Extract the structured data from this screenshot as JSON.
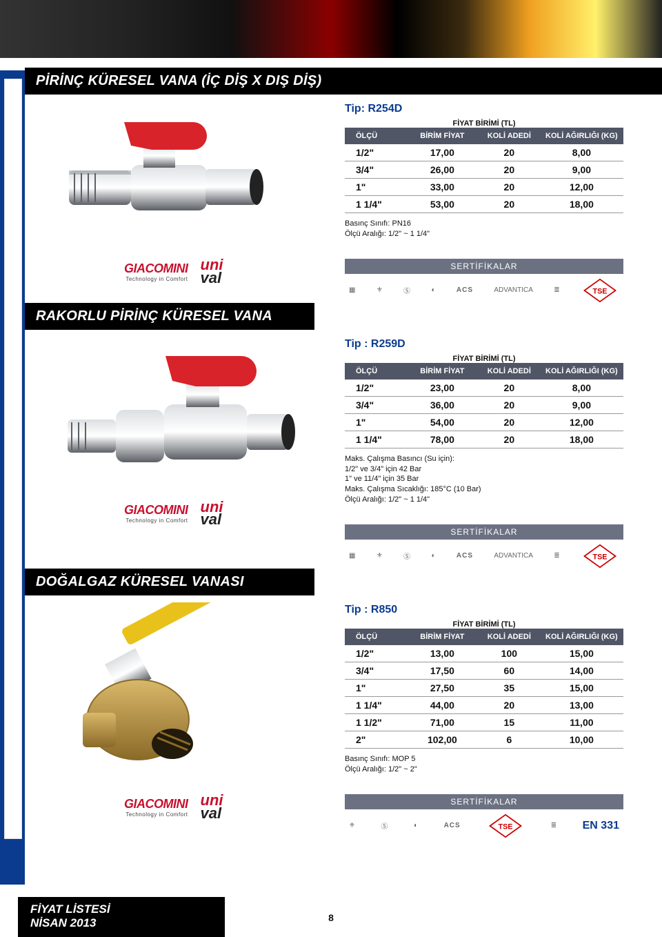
{
  "page": {
    "number": "8"
  },
  "footer": {
    "line1": "FİYAT LİSTESİ",
    "line2": "NİSAN 2013"
  },
  "common": {
    "fiyat_birimi": "FİYAT BİRİMİ (TL)",
    "columns": {
      "olcu": "ÖLÇÜ",
      "birim_fiyat": "BİRİM FİYAT",
      "koli_adedi": "KOLİ ADEDİ",
      "koli_agirligi": "KOLİ AĞIRLIĞI (KG)"
    },
    "sertifikalar": "SERTİFİKALAR",
    "logos": {
      "giacomini": "GIACOMINI",
      "giacomini_sub": "Technology in Comfort",
      "unival_top": "uni",
      "unival_bot": "val"
    },
    "cert_labels": {
      "acs": "ACS",
      "advantica": "ADVANTICA",
      "tse": "TSE",
      "en331": "EN 331"
    }
  },
  "sections": [
    {
      "title": "PİRİNÇ KÜRESEL VANA (İÇ DİŞ X DIŞ DİŞ)",
      "tip": "Tip: R254D",
      "rows": [
        {
          "olcu": "1/2\"",
          "fiyat": "17,00",
          "adet": "20",
          "kg": "8,00"
        },
        {
          "olcu": "3/4\"",
          "fiyat": "26,00",
          "adet": "20",
          "kg": "9,00"
        },
        {
          "olcu": "1\"",
          "fiyat": "33,00",
          "adet": "20",
          "kg": "12,00"
        },
        {
          "olcu": "1 1/4\"",
          "fiyat": "53,00",
          "adet": "20",
          "kg": "18,00"
        }
      ],
      "notes": [
        "Basınç Sınıfı: PN16",
        "Ölçü Aralığı: 1/2\" ~ 1 1/4\""
      ],
      "image": {
        "type": "valve-red-1"
      },
      "cert_set": "A"
    },
    {
      "title": "RAKORLU PİRİNÇ KÜRESEL VANA",
      "tip": "Tip : R259D",
      "rows": [
        {
          "olcu": "1/2\"",
          "fiyat": "23,00",
          "adet": "20",
          "kg": "8,00"
        },
        {
          "olcu": "3/4\"",
          "fiyat": "36,00",
          "adet": "20",
          "kg": "9,00"
        },
        {
          "olcu": "1\"",
          "fiyat": "54,00",
          "adet": "20",
          "kg": "12,00"
        },
        {
          "olcu": "1 1/4\"",
          "fiyat": "78,00",
          "adet": "20",
          "kg": "18,00"
        }
      ],
      "notes": [
        "Maks. Çalışma Basıncı (Su için):",
        "1/2\" ve 3/4\" için 42 Bar",
        "1\" ve 11/4\" için 35 Bar",
        "Maks. Çalışma Sıcaklığı: 185°C (10 Bar)",
        "Ölçü Aralığı: 1/2\" ~ 1 1/4\""
      ],
      "image": {
        "type": "valve-red-2"
      },
      "cert_set": "A"
    },
    {
      "title": "DOĞALGAZ KÜRESEL VANASI",
      "tip": "Tip : R850",
      "rows": [
        {
          "olcu": "1/2\"",
          "fiyat": "13,00",
          "adet": "100",
          "kg": "15,00"
        },
        {
          "olcu": "3/4\"",
          "fiyat": "17,50",
          "adet": "60",
          "kg": "14,00"
        },
        {
          "olcu": "1\"",
          "fiyat": "27,50",
          "adet": "35",
          "kg": "15,00"
        },
        {
          "olcu": "1 1/4\"",
          "fiyat": "44,00",
          "adet": "20",
          "kg": "13,00"
        },
        {
          "olcu": "1 1/2\"",
          "fiyat": "71,00",
          "adet": "15",
          "kg": "11,00"
        },
        {
          "olcu": "2\"",
          "fiyat": "102,00",
          "adet": "6",
          "kg": "10,00"
        }
      ],
      "notes": [
        "Basınç Sınıfı: MOP 5",
        "Ölçü Aralığı: 1/2\" ~ 2\""
      ],
      "image": {
        "type": "valve-yellow"
      },
      "cert_set": "B"
    }
  ],
  "style": {
    "colors": {
      "title_bg": "#000000",
      "brand_blue": "#0a3b8f",
      "th_bg": "#515666",
      "brand_red": "#c8102e",
      "valve_red": "#d8232a",
      "valve_yellow": "#e8c21a",
      "metal_light": "#dcdfe2",
      "metal_mid": "#a8adb3",
      "metal_dark": "#5c6066",
      "brass_light": "#d9b86a",
      "brass_dark": "#8a6a28"
    }
  }
}
